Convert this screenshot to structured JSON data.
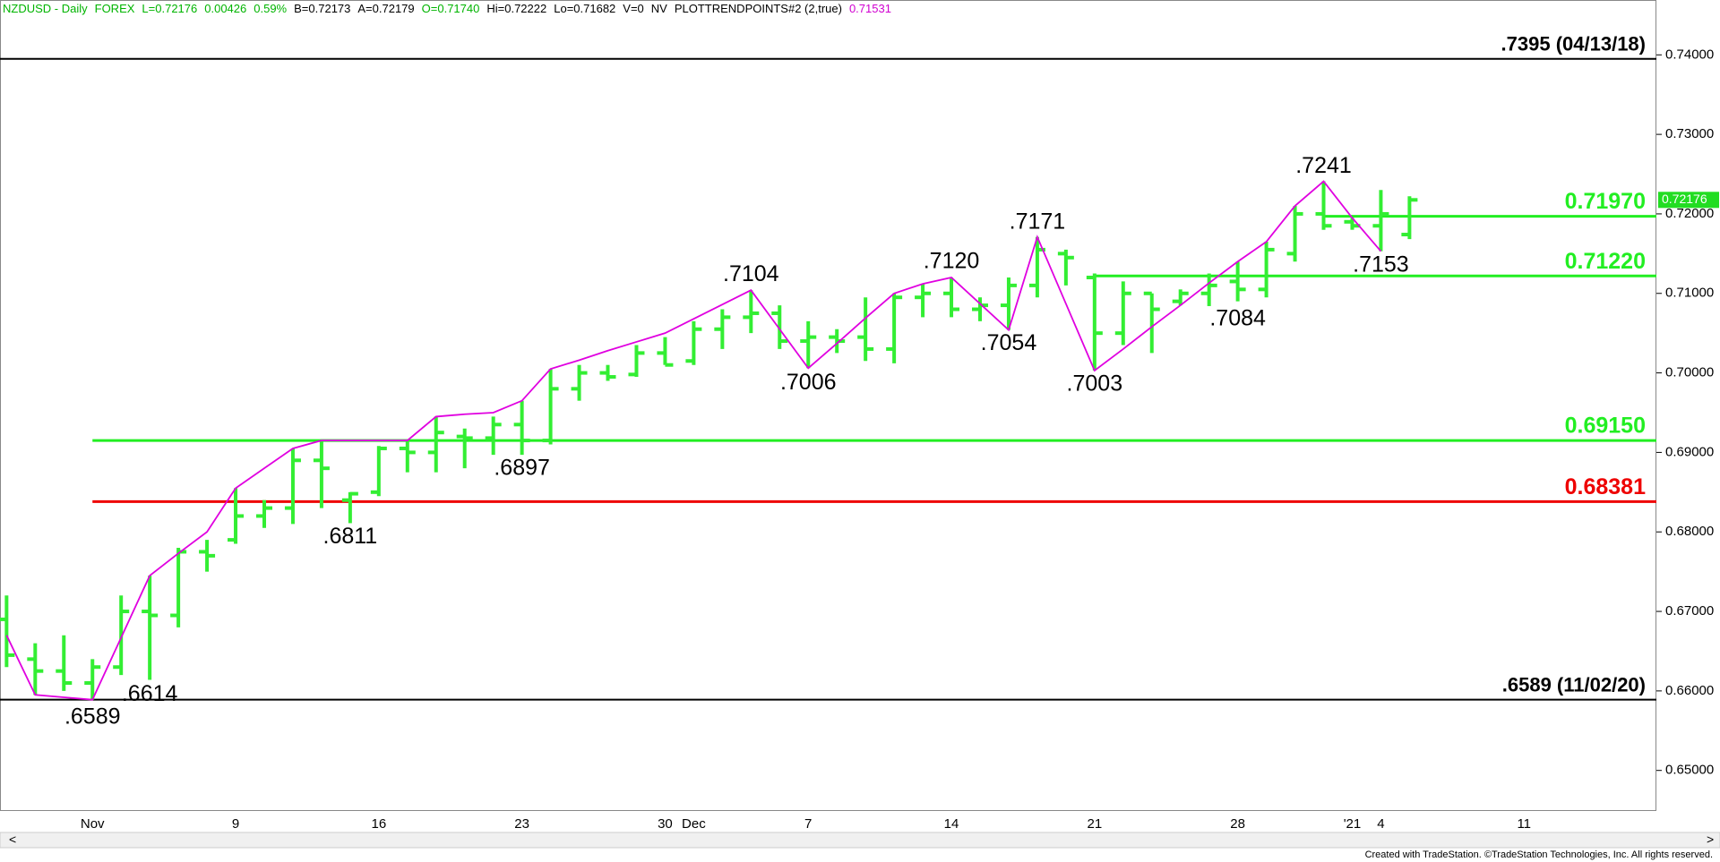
{
  "header": [
    {
      "text": "NZDUSD - Daily",
      "color": "#00b400"
    },
    {
      "text": "FOREX",
      "color": "#00b400"
    },
    {
      "text": "L=0.72176",
      "color": "#00b400"
    },
    {
      "text": "0.00426",
      "color": "#00b400"
    },
    {
      "text": "0.59%",
      "color": "#00b400"
    },
    {
      "text": "B=0.72173",
      "color": "#000000"
    },
    {
      "text": "A=0.72179",
      "color": "#000000"
    },
    {
      "text": "O=0.71740",
      "color": "#00b400"
    },
    {
      "text": "Hi=0.72222",
      "color": "#000000"
    },
    {
      "text": "Lo=0.71682",
      "color": "#000000"
    },
    {
      "text": "V=0",
      "color": "#000000"
    },
    {
      "text": "NV",
      "color": "#000000"
    },
    {
      "text": "PLOTTRENDPOINTS#2 (2,true)",
      "color": "#000000"
    },
    {
      "text": "0.71531",
      "color": "#d000d0"
    }
  ],
  "chart_data": {
    "type": "ohlc",
    "color": "#33ee33",
    "categories": [
      null,
      null,
      null,
      "Nov",
      null,
      null,
      null,
      null,
      "9",
      null,
      null,
      null,
      null,
      "16",
      null,
      null,
      null,
      null,
      "23",
      null,
      null,
      null,
      null,
      "30",
      "Dec",
      null,
      null,
      null,
      "7",
      null,
      null,
      null,
      null,
      "14",
      null,
      null,
      null,
      null,
      "21",
      null,
      null,
      null,
      null,
      "28",
      null,
      null,
      null,
      "'21",
      "4",
      null,
      null,
      null,
      null,
      "11",
      null,
      null,
      null,
      null
    ],
    "open": [
      0.669,
      0.664,
      0.6625,
      0.661,
      0.663,
      0.67,
      0.6695,
      0.6775,
      0.679,
      0.682,
      0.683,
      0.689,
      0.684,
      0.685,
      0.6905,
      0.69,
      0.692,
      0.6918,
      0.6935,
      0.6915,
      0.698,
      0.7,
      0.6998,
      0.7025,
      0.7015,
      0.7055,
      0.707,
      0.7075,
      0.704,
      0.7045,
      0.7045,
      0.703,
      0.7095,
      0.71,
      0.708,
      0.7085,
      0.711,
      0.715,
      0.712,
      0.705,
      0.71,
      0.709,
      0.71,
      0.7115,
      0.7105,
      0.715,
      0.72,
      0.719,
      0.7185,
      0.7174,
      null,
      null,
      null,
      null,
      null,
      null,
      null,
      null
    ],
    "high": [
      0.672,
      0.666,
      0.667,
      0.664,
      0.672,
      0.6745,
      0.678,
      0.679,
      0.6855,
      0.684,
      0.6905,
      0.6915,
      0.685,
      0.6908,
      0.6915,
      0.6945,
      0.693,
      0.6945,
      0.6965,
      0.7005,
      0.701,
      0.701,
      0.7035,
      0.7045,
      0.7065,
      0.708,
      0.7104,
      0.7085,
      0.7065,
      0.7055,
      0.7095,
      0.71,
      0.7112,
      0.712,
      0.7095,
      0.712,
      0.7171,
      0.7155,
      0.7125,
      0.7115,
      0.71,
      0.7105,
      0.7125,
      0.714,
      0.7165,
      0.721,
      0.7241,
      0.7195,
      0.723,
      0.72222,
      null,
      null,
      null,
      null,
      null,
      null,
      null,
      null
    ],
    "low": [
      0.663,
      0.6595,
      0.66,
      0.6589,
      0.662,
      0.6614,
      0.668,
      0.675,
      0.6785,
      0.6805,
      0.681,
      0.683,
      0.6811,
      0.6845,
      0.6875,
      0.6875,
      0.688,
      0.6897,
      0.6897,
      0.691,
      0.6965,
      0.699,
      0.6995,
      0.701,
      0.701,
      0.703,
      0.705,
      0.703,
      0.7006,
      0.7025,
      0.7015,
      0.7012,
      0.707,
      0.707,
      0.7065,
      0.7054,
      0.7095,
      0.711,
      0.7003,
      0.7035,
      0.7025,
      0.7085,
      0.7084,
      0.709,
      0.7095,
      0.714,
      0.718,
      0.718,
      0.7153,
      0.71682,
      null,
      null,
      null,
      null,
      null,
      null,
      null,
      null
    ],
    "close": [
      0.6645,
      0.6625,
      0.661,
      0.663,
      0.67,
      0.6695,
      0.6775,
      0.677,
      0.682,
      0.683,
      0.689,
      0.688,
      0.6848,
      0.6905,
      0.69,
      0.6925,
      0.6918,
      0.6935,
      0.6915,
      0.698,
      0.7,
      0.6995,
      0.7025,
      0.701,
      0.7055,
      0.707,
      0.7075,
      0.704,
      0.7045,
      0.704,
      0.703,
      0.7095,
      0.71,
      0.708,
      0.7085,
      0.711,
      0.7155,
      0.7145,
      0.705,
      0.71,
      0.708,
      0.71,
      0.711,
      0.7105,
      0.7155,
      0.72,
      0.7185,
      0.7185,
      0.72,
      0.72176,
      null,
      null,
      null,
      null,
      null,
      null,
      null,
      null
    ],
    "trend": {
      "color": "#e000e0",
      "values": [
        0.667,
        0.6595,
        0.6592,
        0.6589,
        0.6667,
        0.6745,
        0.6773,
        0.68,
        0.6855,
        0.688,
        0.6905,
        0.6915,
        0.6915,
        0.6915,
        0.6915,
        0.6945,
        0.6948,
        0.695,
        0.6965,
        0.7005,
        0.7016,
        0.7028,
        0.7039,
        0.705,
        0.7068,
        0.7086,
        0.7104,
        0.7055,
        0.7006,
        0.7037,
        0.7069,
        0.71,
        0.7112,
        0.712,
        0.7087,
        0.7054,
        0.7171,
        0.7087,
        0.7003,
        0.703,
        0.7058,
        0.7085,
        0.7113,
        0.714,
        0.7165,
        0.721,
        0.7241,
        0.7195,
        0.7153,
        null,
        null,
        null,
        null,
        null,
        null,
        null,
        null,
        null
      ]
    },
    "levels": [
      {
        "value": 0.7395,
        "label": ".7395 (04/13/18)",
        "color": "#000000"
      },
      {
        "value": 0.6589,
        "label": ".6589 (11/02/20)",
        "color": "#000000"
      },
      {
        "value": 0.7197,
        "label": "0.71970",
        "color": "#22ee22"
      },
      {
        "value": 0.7122,
        "label": "0.71220",
        "color": "#22ee22"
      },
      {
        "value": 0.6915,
        "label": "0.69150",
        "color": "#22ee22"
      },
      {
        "value": 0.68381,
        "label": "0.68381",
        "color": "#ee0000"
      }
    ],
    "annotations": [
      {
        "value": 0.6589,
        "label": ".6589"
      },
      {
        "value": 0.6614,
        "label": ".6614"
      },
      {
        "value": 0.6811,
        "label": ".6811"
      },
      {
        "value": 0.6897,
        "label": ".6897"
      },
      {
        "value": 0.7104,
        "label": ".7104"
      },
      {
        "value": 0.7006,
        "label": ".7006"
      },
      {
        "value": 0.712,
        "label": ".7120"
      },
      {
        "value": 0.7054,
        "label": ".7054"
      },
      {
        "value": 0.7171,
        "label": ".7171"
      },
      {
        "value": 0.7003,
        "label": ".7003"
      },
      {
        "value": 0.7084,
        "label": ".7084"
      },
      {
        "value": 0.7241,
        "label": ".7241"
      },
      {
        "value": 0.7153,
        "label": ".7153"
      }
    ],
    "last_price": {
      "value": 0.72176,
      "label": "0.72176"
    },
    "ylim": [
      0.6449,
      0.7469
    ],
    "yticks": [
      {
        "value": 0.65,
        "label": "0.65000"
      },
      {
        "value": 0.66,
        "label": "0.66000"
      },
      {
        "value": 0.67,
        "label": "0.67000"
      },
      {
        "value": 0.68,
        "label": "0.68000"
      },
      {
        "value": 0.69,
        "label": "0.69000"
      },
      {
        "value": 0.7,
        "label": "0.70000"
      },
      {
        "value": 0.71,
        "label": "0.71000"
      },
      {
        "value": 0.72,
        "label": "0.72000"
      },
      {
        "value": 0.73,
        "label": "0.73000"
      },
      {
        "value": 0.74,
        "label": "0.74000"
      }
    ]
  },
  "scroll": [
    "<",
    ">"
  ],
  "footer": "Created with TradeStation. ©TradeStation Technologies, Inc. All rights reserved."
}
